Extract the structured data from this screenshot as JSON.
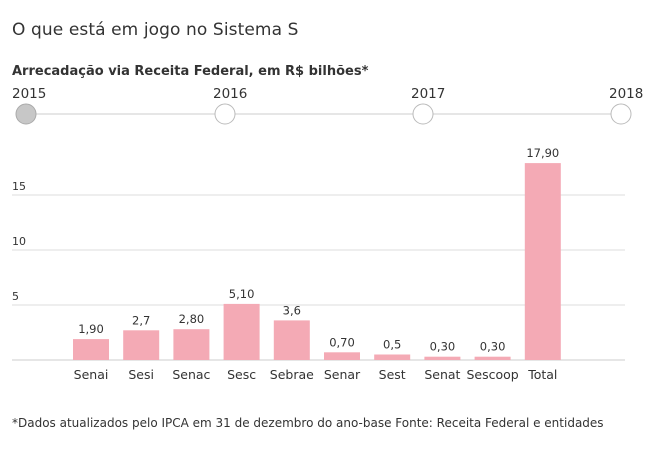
{
  "title": "O que está em jogo no Sistema S",
  "subtitle": "Arrecadação via Receita Federal, em R$ bilhões*",
  "timeline": {
    "years": [
      "2015",
      "2016",
      "2017",
      "2018"
    ],
    "selected": "2015"
  },
  "footnote": "*Dados atualizados pelo IPCA em 31 de dezembro do ano-base Fonte: Receita Federal e entidades",
  "colors": {
    "bar": "#f4aab5",
    "grid": "#dddddd",
    "selected_dot": "#c7c7c7",
    "dot_border": "#aaaaaa"
  },
  "chart_data": {
    "type": "bar",
    "title": "Arrecadação via Receita Federal, em R$ bilhões*",
    "categories": [
      "Senai",
      "Sesi",
      "Senac",
      "Sesc",
      "Sebrae",
      "Senar",
      "Sest",
      "Senat",
      "Sescoop",
      "Total"
    ],
    "values": [
      1.9,
      2.7,
      2.8,
      5.1,
      3.6,
      0.7,
      0.5,
      0.3,
      0.3,
      17.9
    ],
    "value_labels": [
      "1,90",
      "2,7",
      "2,80",
      "5,10",
      "3,6",
      "0,70",
      "0,5",
      "0,30",
      "0,30",
      "17,90"
    ],
    "yticks": [
      5,
      10,
      15
    ],
    "ylim": [
      0,
      20
    ],
    "grid": true,
    "xlabel": "",
    "ylabel": ""
  }
}
